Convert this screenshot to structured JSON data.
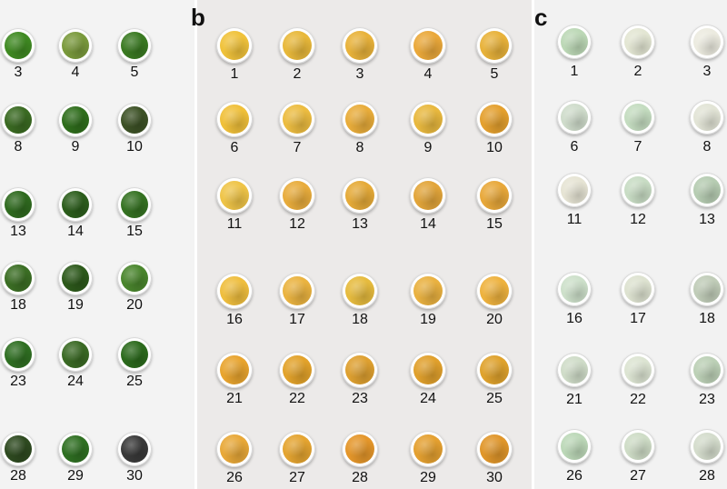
{
  "panels": [
    {
      "label": "",
      "id": "a",
      "samples": [
        "3",
        "4",
        "5",
        "8",
        "9",
        "10",
        "13",
        "14",
        "15",
        "18",
        "19",
        "20",
        "23",
        "24",
        "25",
        "28",
        "29",
        "30"
      ],
      "colors": [
        "#3f8a22",
        "#7a9a3c",
        "#3a7a22",
        "#3a6a22",
        "#2f6e1c",
        "#3d5226",
        "#2f6a1f",
        "#2c5e1c",
        "#357222",
        "#3b6e24",
        "#2d5a1b",
        "#4a862d",
        "#2f6f22",
        "#3a6a24",
        "#2b6a1c",
        "#2e4a20",
        "#2f7022",
        "#3a3a3a"
      ]
    },
    {
      "label": "b",
      "id": "b",
      "samples": [
        "1",
        "2",
        "3",
        "4",
        "5",
        "6",
        "7",
        "8",
        "9",
        "10",
        "11",
        "12",
        "13",
        "14",
        "15",
        "16",
        "17",
        "18",
        "19",
        "20",
        "21",
        "22",
        "23",
        "24",
        "25",
        "26",
        "27",
        "28",
        "29",
        "30"
      ],
      "colors": [
        "#f0c23a",
        "#e8b83a",
        "#e8b23a",
        "#eaa83a",
        "#e8b23a",
        "#f0c03a",
        "#ecbc40",
        "#e8ac3a",
        "#e8b83e",
        "#e4a02e",
        "#efc447",
        "#e8ac3c",
        "#e5aa38",
        "#e2a53a",
        "#e8a83a",
        "#efbe3e",
        "#eab340",
        "#e6bb3e",
        "#e9b140",
        "#eeb23e",
        "#e8a42e",
        "#e2a22a",
        "#dea030",
        "#e0a02c",
        "#dfa22c",
        "#e8a838",
        "#e4a430",
        "#e4962a",
        "#e4a030",
        "#e0962a"
      ]
    },
    {
      "label": "c",
      "id": "c",
      "samples": [
        "1",
        "2",
        "3",
        "6",
        "7",
        "8",
        "11",
        "12",
        "13",
        "16",
        "17",
        "18",
        "21",
        "22",
        "23",
        "26",
        "27",
        "28"
      ],
      "colors": [
        "#bcd8b6",
        "#e3e6d3",
        "#ecebe0",
        "#cfdccb",
        "#c4dcc0",
        "#e2e4d6",
        "#e6e4d4",
        "#c8dcc4",
        "#b6ccb2",
        "#cde0ca",
        "#dde2d0",
        "#c0ccb8",
        "#cfdcc8",
        "#dce4d2",
        "#bcd0b6",
        "#bcd8b8",
        "#cedcc6",
        "#d4dccc"
      ]
    }
  ]
}
